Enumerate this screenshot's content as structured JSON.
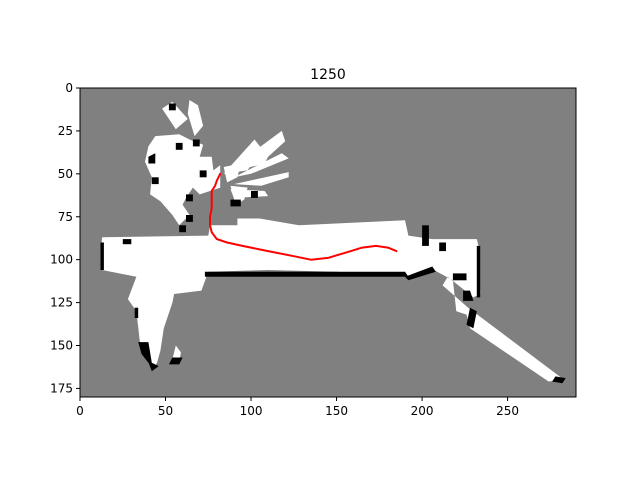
{
  "chart_data": {
    "type": "heatmap",
    "title": "1250",
    "xlabel": "",
    "ylabel": "",
    "xlim": [
      0,
      290
    ],
    "ylim": [
      180,
      0
    ],
    "xticks": [
      0,
      50,
      100,
      150,
      200,
      250
    ],
    "yticks": [
      0,
      25,
      50,
      75,
      100,
      125,
      150,
      175
    ],
    "grid": false,
    "colors": {
      "unknown": "#808080",
      "free": "#ffffff",
      "occupied": "#000000",
      "path": "#ff0000"
    },
    "free_polygons": [
      [
        [
          13,
          87
        ],
        [
          75,
          86
        ],
        [
          76,
          80
        ],
        [
          92,
          80
        ],
        [
          92,
          76
        ],
        [
          105,
          76
        ],
        [
          128,
          80
        ],
        [
          170,
          78
        ],
        [
          190,
          77
        ],
        [
          192,
          86
        ],
        [
          206,
          88
        ],
        [
          232,
          88
        ],
        [
          233,
          92
        ],
        [
          234,
          120
        ],
        [
          230,
          122
        ],
        [
          215,
          110
        ],
        [
          212,
          115
        ],
        [
          227,
          128
        ],
        [
          283,
          170
        ],
        [
          274,
          171
        ],
        [
          228,
          140
        ],
        [
          226,
          132
        ],
        [
          220,
          130
        ],
        [
          218,
          112
        ],
        [
          205,
          105
        ],
        [
          190,
          110
        ],
        [
          150,
          107
        ],
        [
          110,
          106
        ],
        [
          75,
          107
        ],
        [
          71,
          118
        ],
        [
          55,
          120
        ],
        [
          54,
          125
        ],
        [
          49,
          140
        ],
        [
          47,
          153
        ],
        [
          45,
          160
        ],
        [
          42,
          165
        ],
        [
          35,
          148
        ],
        [
          33,
          130
        ],
        [
          28,
          123
        ],
        [
          33,
          110
        ],
        [
          13,
          106
        ],
        [
          12,
          96
        ]
      ],
      [
        [
          56,
          150
        ],
        [
          59,
          154
        ],
        [
          58,
          160
        ],
        [
          54,
          158
        ]
      ],
      [
        [
          40,
          34
        ],
        [
          44,
          28
        ],
        [
          58,
          27
        ],
        [
          64,
          30
        ],
        [
          72,
          33
        ],
        [
          70,
          40
        ],
        [
          77,
          40
        ],
        [
          78,
          48
        ],
        [
          82,
          45
        ],
        [
          82,
          58
        ],
        [
          70,
          62
        ],
        [
          66,
          58
        ],
        [
          62,
          64
        ],
        [
          60,
          68
        ],
        [
          64,
          74
        ],
        [
          58,
          80
        ],
        [
          54,
          74
        ],
        [
          47,
          66
        ],
        [
          41,
          62
        ],
        [
          42,
          52
        ],
        [
          38,
          43
        ]
      ],
      [
        [
          84,
          46
        ],
        [
          94,
          44
        ],
        [
          92,
          52
        ],
        [
          86,
          55
        ]
      ],
      [
        [
          88,
          57
        ],
        [
          98,
          58
        ],
        [
          96,
          65
        ],
        [
          91,
          68
        ]
      ],
      [
        [
          48,
          12
        ],
        [
          54,
          8
        ],
        [
          63,
          18
        ],
        [
          56,
          24
        ]
      ],
      [
        [
          63,
          15
        ],
        [
          64,
          7
        ],
        [
          69,
          10
        ],
        [
          72,
          22
        ],
        [
          67,
          28
        ]
      ],
      [
        [
          84,
          50
        ],
        [
          102,
          30
        ],
        [
          106,
          35
        ],
        [
          98,
          48
        ]
      ],
      [
        [
          84,
          50
        ],
        [
          118,
          25
        ],
        [
          120,
          31
        ],
        [
          110,
          40
        ],
        [
          108,
          44
        ]
      ],
      [
        [
          90,
          52
        ],
        [
          118,
          38
        ],
        [
          122,
          41
        ],
        [
          100,
          50
        ]
      ],
      [
        [
          90,
          56
        ],
        [
          122,
          49
        ],
        [
          122,
          52
        ],
        [
          106,
          57
        ]
      ],
      [
        [
          88,
          59
        ],
        [
          108,
          60
        ],
        [
          110,
          63
        ],
        [
          90,
          64
        ]
      ]
    ],
    "occupied_polygons": [
      [
        [
          12,
          90
        ],
        [
          14,
          90
        ],
        [
          14,
          106
        ],
        [
          12,
          106
        ]
      ],
      [
        [
          25,
          88
        ],
        [
          30,
          88
        ],
        [
          30,
          91
        ],
        [
          25,
          91
        ]
      ],
      [
        [
          32,
          128
        ],
        [
          34,
          128
        ],
        [
          34,
          134
        ],
        [
          32,
          134
        ]
      ],
      [
        [
          34,
          148
        ],
        [
          40,
          148
        ],
        [
          42,
          160
        ],
        [
          46,
          162
        ],
        [
          42,
          165
        ],
        [
          40,
          160
        ],
        [
          36,
          155
        ]
      ],
      [
        [
          54,
          157
        ],
        [
          60,
          157
        ],
        [
          58,
          161
        ],
        [
          52,
          161
        ]
      ],
      [
        [
          73,
          107
        ],
        [
          190,
          107
        ],
        [
          192,
          110
        ],
        [
          73,
          110
        ]
      ],
      [
        [
          190,
          110
        ],
        [
          206,
          104
        ],
        [
          208,
          107
        ],
        [
          192,
          112
        ]
      ],
      [
        [
          218,
          108
        ],
        [
          226,
          108
        ],
        [
          226,
          112
        ],
        [
          218,
          112
        ]
      ],
      [
        [
          224,
          118
        ],
        [
          228,
          118
        ],
        [
          230,
          124
        ],
        [
          224,
          124
        ]
      ],
      [
        [
          228,
          128
        ],
        [
          232,
          130
        ],
        [
          230,
          140
        ],
        [
          226,
          138
        ]
      ],
      [
        [
          232,
          92
        ],
        [
          234,
          92
        ],
        [
          234,
          122
        ],
        [
          232,
          122
        ]
      ],
      [
        [
          210,
          90
        ],
        [
          214,
          90
        ],
        [
          214,
          95
        ],
        [
          210,
          95
        ]
      ],
      [
        [
          200,
          80
        ],
        [
          204,
          80
        ],
        [
          204,
          92
        ],
        [
          200,
          92
        ]
      ],
      [
        [
          278,
          168
        ],
        [
          284,
          169
        ],
        [
          282,
          172
        ],
        [
          276,
          171
        ]
      ],
      [
        [
          40,
          40
        ],
        [
          44,
          38
        ],
        [
          44,
          44
        ],
        [
          40,
          44
        ]
      ],
      [
        [
          42,
          52
        ],
        [
          46,
          52
        ],
        [
          46,
          56
        ],
        [
          42,
          56
        ]
      ],
      [
        [
          56,
          32
        ],
        [
          60,
          32
        ],
        [
          60,
          36
        ],
        [
          56,
          36
        ]
      ],
      [
        [
          66,
          30
        ],
        [
          70,
          30
        ],
        [
          70,
          34
        ],
        [
          66,
          34
        ]
      ],
      [
        [
          62,
          62
        ],
        [
          66,
          62
        ],
        [
          66,
          66
        ],
        [
          62,
          66
        ]
      ],
      [
        [
          88,
          65
        ],
        [
          94,
          65
        ],
        [
          94,
          69
        ],
        [
          88,
          69
        ]
      ],
      [
        [
          100,
          60
        ],
        [
          104,
          60
        ],
        [
          104,
          64
        ],
        [
          100,
          64
        ]
      ],
      [
        [
          52,
          9
        ],
        [
          56,
          9
        ],
        [
          56,
          13
        ],
        [
          52,
          13
        ]
      ],
      [
        [
          62,
          74
        ],
        [
          66,
          74
        ],
        [
          66,
          78
        ],
        [
          62,
          78
        ]
      ],
      [
        [
          58,
          80
        ],
        [
          62,
          80
        ],
        [
          62,
          84
        ],
        [
          58,
          84
        ]
      ],
      [
        [
          70,
          48
        ],
        [
          74,
          48
        ],
        [
          74,
          52
        ],
        [
          70,
          52
        ]
      ]
    ],
    "path": [
      [
        82,
        50
      ],
      [
        80,
        54
      ],
      [
        79,
        57
      ],
      [
        77,
        60
      ],
      [
        77,
        65
      ],
      [
        77,
        70
      ],
      [
        76,
        75
      ],
      [
        76,
        80
      ],
      [
        77,
        84
      ],
      [
        80,
        88
      ],
      [
        86,
        90
      ],
      [
        95,
        92
      ],
      [
        110,
        95
      ],
      [
        125,
        98
      ],
      [
        135,
        100
      ],
      [
        145,
        99
      ],
      [
        155,
        96
      ],
      [
        165,
        93
      ],
      [
        173,
        92
      ],
      [
        180,
        93
      ],
      [
        185,
        95
      ]
    ]
  }
}
